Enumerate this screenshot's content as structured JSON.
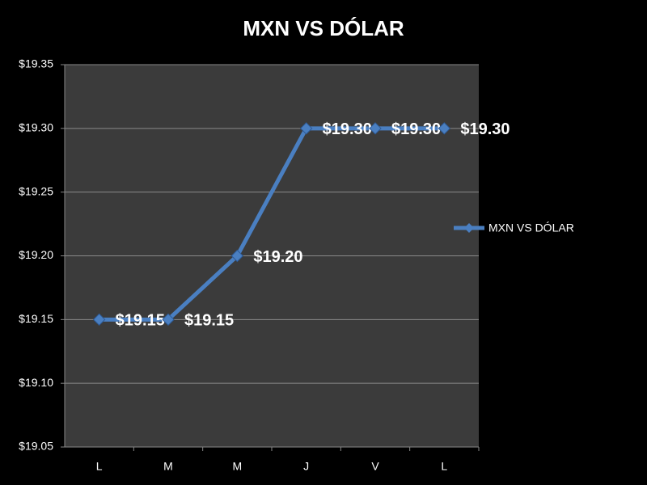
{
  "chart_data": {
    "type": "line",
    "title": "MXN VS DÓLAR",
    "categories": [
      "L",
      "M",
      "M",
      "J",
      "V",
      "L"
    ],
    "series": [
      {
        "name": "MXN VS DÓLAR",
        "color": "#4a7fc1",
        "values": [
          19.15,
          19.15,
          19.2,
          19.3,
          19.3,
          19.3
        ],
        "value_labels": [
          "$19.15",
          "$19.15",
          "$19.20",
          "$19.30",
          "$19.30",
          "$19.30"
        ]
      }
    ],
    "ylim": [
      19.05,
      19.35
    ],
    "yticks": [
      {
        "value": 19.05,
        "label": "$19.05"
      },
      {
        "value": 19.1,
        "label": "$19.10"
      },
      {
        "value": 19.15,
        "label": "$19.15"
      },
      {
        "value": 19.2,
        "label": "$19.20"
      },
      {
        "value": 19.25,
        "label": "$19.25"
      },
      {
        "value": 19.3,
        "label": "$19.30"
      },
      {
        "value": 19.35,
        "label": "$19.35"
      }
    ],
    "grid": true,
    "legend": "right"
  }
}
